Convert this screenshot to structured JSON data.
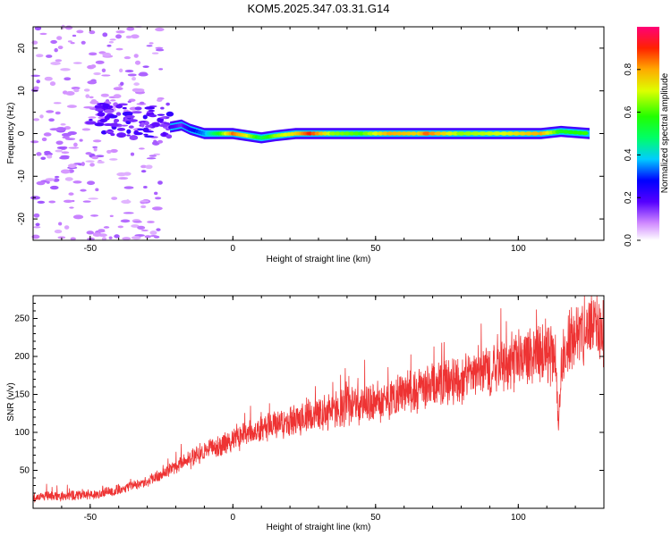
{
  "title": "KOM5.2025.347.03.31.G14",
  "chart_data": [
    {
      "type": "heatmap",
      "xlabel": "Height of straight line (km)",
      "ylabel": "Frequency (Hz)",
      "xlim": [
        -70,
        130
      ],
      "ylim": [
        -25,
        25
      ],
      "xticks": [
        -50,
        0,
        50,
        100
      ],
      "yticks": [
        -20,
        -10,
        0,
        10,
        20
      ],
      "ridge": {
        "x_start": -25,
        "x_end": 130,
        "center_hz": 0,
        "points": [
          {
            "x": -22,
            "y": 1.5,
            "a": 0.2
          },
          {
            "x": -18,
            "y": 2.0,
            "a": 0.15
          },
          {
            "x": -15,
            "y": 1.0,
            "a": 0.25
          },
          {
            "x": -10,
            "y": 0.0,
            "a": 0.35
          },
          {
            "x": -5,
            "y": 0.0,
            "a": 0.55
          },
          {
            "x": 0,
            "y": 0.0,
            "a": 0.85
          },
          {
            "x": 5,
            "y": -0.5,
            "a": 0.7
          },
          {
            "x": 10,
            "y": -1.0,
            "a": 0.5
          },
          {
            "x": 15,
            "y": -0.5,
            "a": 0.65
          },
          {
            "x": 22,
            "y": 0.0,
            "a": 0.75
          },
          {
            "x": 27,
            "y": 0.0,
            "a": 0.9
          },
          {
            "x": 35,
            "y": 0.0,
            "a": 0.65
          },
          {
            "x": 45,
            "y": 0.0,
            "a": 0.6
          },
          {
            "x": 55,
            "y": 0.0,
            "a": 0.8
          },
          {
            "x": 65,
            "y": 0.0,
            "a": 0.75
          },
          {
            "x": 68,
            "y": 0.0,
            "a": 0.85
          },
          {
            "x": 80,
            "y": 0.0,
            "a": 0.65
          },
          {
            "x": 95,
            "y": 0.0,
            "a": 0.7
          },
          {
            "x": 108,
            "y": 0.0,
            "a": 0.8
          },
          {
            "x": 115,
            "y": 0.5,
            "a": 0.55
          },
          {
            "x": 125,
            "y": 0.0,
            "a": 0.6
          }
        ]
      },
      "noise_region": {
        "x_start": -70,
        "x_end": -25,
        "amplitude_range": [
          0.0,
          0.25
        ]
      },
      "colorbar": {
        "label": "Normalized spectral amplitude",
        "range": [
          0.0,
          1.0
        ],
        "ticks": [
          0.0,
          0.2,
          0.4,
          0.6,
          0.8
        ],
        "tick_labels": [
          "0.0",
          "0.2",
          "0.4",
          "0.6",
          "0.8"
        ]
      }
    },
    {
      "type": "line",
      "xlabel": "Height of straight line (km)",
      "ylabel": "SNR (v/v)",
      "xlim": [
        -70,
        130
      ],
      "ylim": [
        0,
        280
      ],
      "xticks": [
        -50,
        0,
        50,
        100
      ],
      "yticks": [
        50,
        100,
        150,
        200,
        250
      ],
      "line_color": "#ee3333",
      "trend": [
        {
          "x": -70,
          "y": 15
        },
        {
          "x": -50,
          "y": 18
        },
        {
          "x": -40,
          "y": 25
        },
        {
          "x": -30,
          "y": 35
        },
        {
          "x": -20,
          "y": 55
        },
        {
          "x": -10,
          "y": 75
        },
        {
          "x": 0,
          "y": 90
        },
        {
          "x": 10,
          "y": 105
        },
        {
          "x": 20,
          "y": 115
        },
        {
          "x": 30,
          "y": 125
        },
        {
          "x": 40,
          "y": 135
        },
        {
          "x": 50,
          "y": 140
        },
        {
          "x": 60,
          "y": 150
        },
        {
          "x": 70,
          "y": 160
        },
        {
          "x": 80,
          "y": 172
        },
        {
          "x": 90,
          "y": 183
        },
        {
          "x": 100,
          "y": 195
        },
        {
          "x": 110,
          "y": 210
        },
        {
          "x": 113,
          "y": 195
        },
        {
          "x": 114,
          "y": 110
        },
        {
          "x": 115,
          "y": 190
        },
        {
          "x": 120,
          "y": 235
        },
        {
          "x": 130,
          "y": 235
        }
      ]
    }
  ]
}
